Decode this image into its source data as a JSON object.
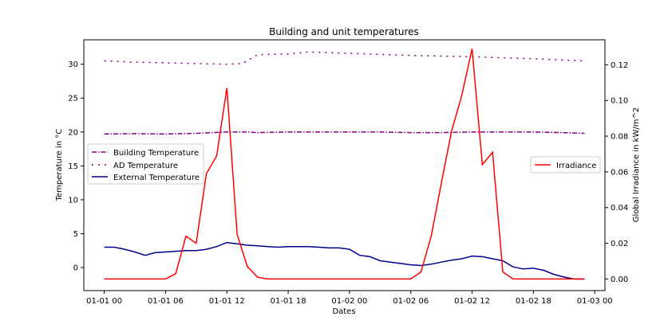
{
  "chart_data": {
    "type": "line",
    "title": "Building and unit temperatures",
    "xlabel": "Dates",
    "ylabel_left": "Temperature in °C",
    "ylabel_right": "Global Irradiance in kW/m^2",
    "x_ticks": [
      "01-01 00",
      "01-01 06",
      "01-01 12",
      "01-01 18",
      "01-02 00",
      "01-02 06",
      "01-02 12",
      "01-02 18",
      "01-03 00"
    ],
    "x_range_hours": [
      -2,
      49
    ],
    "ylim_left": [
      -3.4,
      33.6
    ],
    "ylim_right": [
      -0.0065,
      0.134
    ],
    "yticks_left": [
      0,
      5,
      10,
      15,
      20,
      25,
      30
    ],
    "yticks_right": [
      "0.00",
      "0.02",
      "0.04",
      "0.06",
      "0.08",
      "0.10",
      "0.12"
    ],
    "grid": false,
    "legend_left_position": "center-left",
    "legend_right_position": "center-right",
    "series": [
      {
        "name": "Building Temperature",
        "axis": "left",
        "color": "#800080",
        "style": "dashdot",
        "x": [
          0,
          3,
          6,
          9,
          12,
          14,
          15,
          18,
          21,
          24,
          27,
          30,
          33,
          36,
          39,
          42,
          45,
          47
        ],
        "y": [
          19.7,
          19.75,
          19.7,
          19.8,
          20.0,
          20.0,
          19.9,
          20.0,
          20.0,
          20.0,
          20.0,
          19.9,
          19.9,
          20.0,
          20.0,
          20.0,
          19.9,
          19.8
        ]
      },
      {
        "name": "AD Temperature",
        "axis": "left",
        "color": "#800080",
        "style": "dash-dotted-sparse",
        "x": [
          0,
          3,
          6,
          9,
          12,
          13.5,
          15,
          18,
          20,
          24,
          30,
          36,
          42,
          45,
          47
        ],
        "y": [
          30.5,
          30.3,
          30.2,
          30.1,
          30.0,
          30.1,
          31.4,
          31.5,
          31.8,
          31.6,
          31.3,
          31.1,
          30.8,
          30.6,
          30.5
        ]
      },
      {
        "name": "External Temperature",
        "axis": "left",
        "color": "#00008b",
        "style": "solid",
        "x": [
          0,
          1,
          2,
          3,
          4,
          5,
          6,
          7,
          8,
          9,
          10,
          11,
          12,
          13,
          14,
          15,
          16,
          17,
          18,
          19,
          20,
          21,
          22,
          23,
          24,
          25,
          26,
          27,
          28,
          29,
          30,
          31,
          32,
          33,
          34,
          35,
          36,
          37,
          38,
          39,
          40,
          41,
          42,
          43,
          44,
          45,
          46,
          47
        ],
        "y": [
          3.0,
          3.0,
          2.7,
          2.3,
          1.8,
          2.2,
          2.3,
          2.4,
          2.5,
          2.5,
          2.7,
          3.1,
          3.7,
          3.5,
          3.3,
          3.2,
          3.1,
          3.0,
          3.1,
          3.1,
          3.1,
          3.0,
          2.9,
          2.9,
          2.7,
          1.8,
          1.6,
          1.0,
          0.8,
          0.6,
          0.4,
          0.3,
          0.5,
          0.8,
          1.1,
          1.3,
          1.7,
          1.6,
          1.3,
          1.0,
          0.1,
          -0.2,
          -0.1,
          -0.4,
          -1.0,
          -1.4,
          -1.7,
          -1.7
        ]
      },
      {
        "name": "Irradiance",
        "axis": "right",
        "color": "#ff0000",
        "style": "solid",
        "x": [
          0,
          1,
          2,
          3,
          4,
          5,
          6,
          7,
          8,
          9,
          10,
          11,
          12,
          13,
          14,
          15,
          16,
          17,
          18,
          19,
          20,
          21,
          22,
          23,
          24,
          25,
          26,
          27,
          28,
          29,
          30,
          31,
          32,
          33,
          34,
          35,
          36,
          37,
          38,
          39,
          40,
          41,
          42,
          43,
          44,
          45,
          46,
          47
        ],
        "y": [
          0,
          0,
          0,
          0,
          0,
          0,
          0,
          0.003,
          0.024,
          0.02,
          0.059,
          0.069,
          0.107,
          0.025,
          0.007,
          0.001,
          0,
          0,
          0,
          0,
          0,
          0,
          0,
          0,
          0,
          0,
          0,
          0,
          0,
          0,
          0,
          0.004,
          0.024,
          0.054,
          0.083,
          0.103,
          0.129,
          0.064,
          0.071,
          0.004,
          0,
          0,
          0,
          0,
          0,
          0,
          0,
          0
        ]
      }
    ]
  }
}
